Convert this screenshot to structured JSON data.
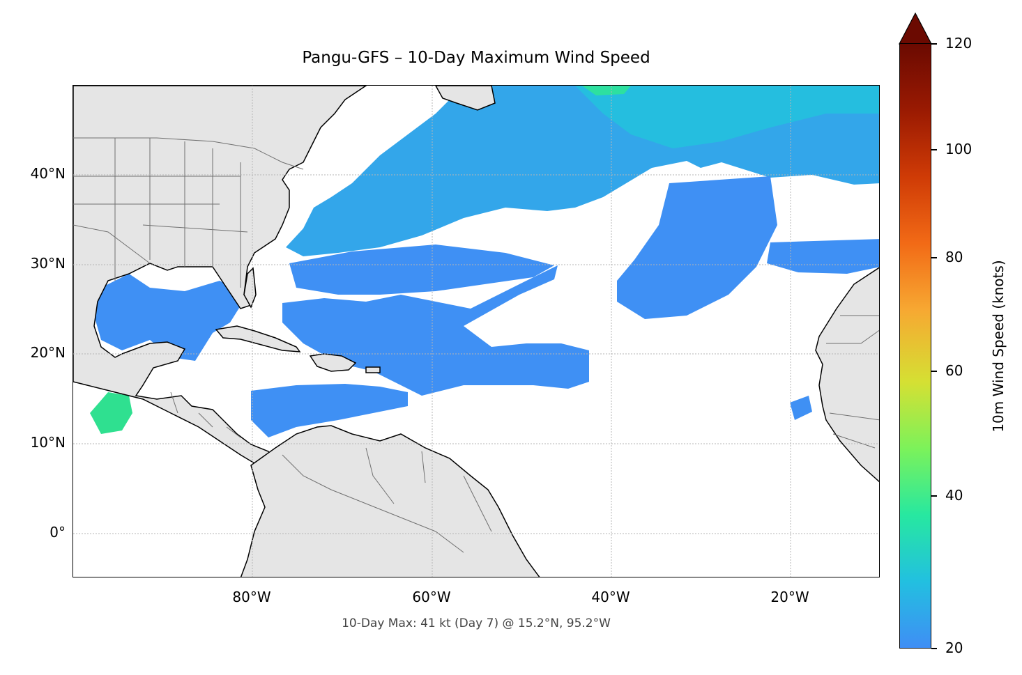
{
  "title": "Pangu-GFS – 10-Day Maximum Wind Speed",
  "footnote": "10-Day Max: 41 kt (Day 7) @ 15.2°N, 95.2°W",
  "map": {
    "lon_range": [
      -100,
      -10
    ],
    "lat_range": [
      -5,
      50
    ],
    "lat_ticks": [
      {
        "value": 40,
        "label": "40°N"
      },
      {
        "value": 30,
        "label": "30°N"
      },
      {
        "value": 20,
        "label": "20°N"
      },
      {
        "value": 10,
        "label": "10°N"
      },
      {
        "value": 0,
        "label": "0°"
      }
    ],
    "lon_ticks": [
      {
        "value": -80,
        "label": "80°W"
      },
      {
        "value": -60,
        "label": "60°W"
      },
      {
        "value": -40,
        "label": "40°W"
      },
      {
        "value": -20,
        "label": "20°W"
      }
    ],
    "gridlines": true,
    "colors": {
      "land": "#e5e5e5",
      "coast": "#000000",
      "borders": "#707070",
      "wind_low": "#3f90f4",
      "wind_mid": "#22c8d8",
      "wind_high": "#2ff08a"
    }
  },
  "colorbar": {
    "label": "10m Wind Speed (knots)",
    "min": 20,
    "max": 120,
    "extend": "max",
    "ticks": [
      {
        "value": 120,
        "label": "120"
      },
      {
        "value": 100,
        "label": "100"
      },
      {
        "value": 80,
        "label": "80"
      },
      {
        "value": 60,
        "label": "60"
      },
      {
        "value": 40,
        "label": "40"
      },
      {
        "value": 20,
        "label": "20"
      }
    ],
    "stops": [
      "#3f8ef5",
      "#22c0e0",
      "#27e8a0",
      "#7cf25a",
      "#d5e033",
      "#f7a832",
      "#f26a16",
      "#cf3b06",
      "#9a1a02",
      "#6b0a01"
    ],
    "extend_color": "#6b0a01"
  }
}
